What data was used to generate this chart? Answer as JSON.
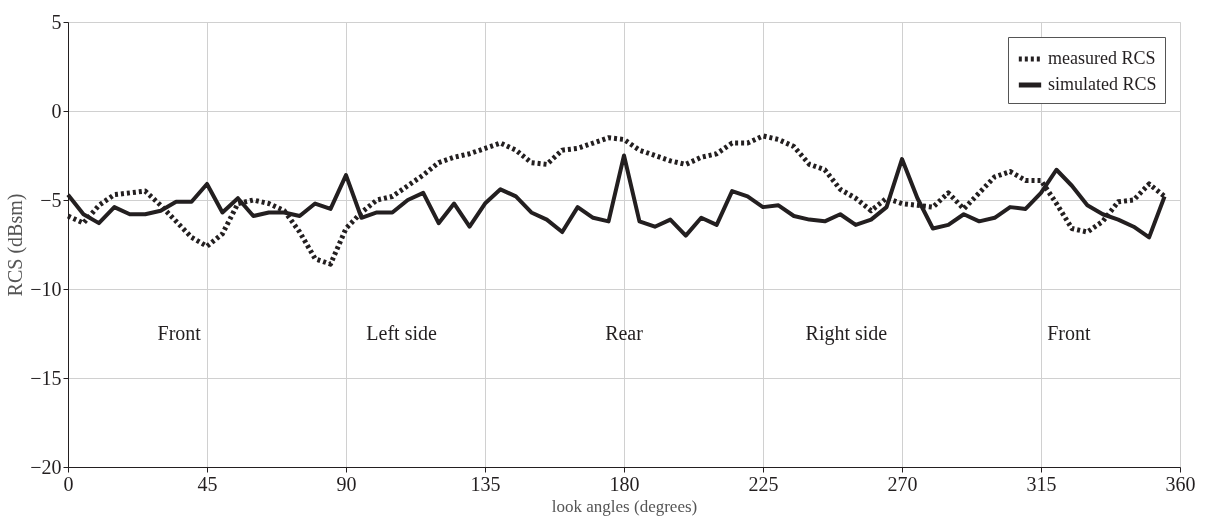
{
  "chart_data": {
    "type": "line",
    "xlabel": "look angles (degrees)",
    "ylabel": "RCS (dBsm)",
    "x": [
      0,
      5,
      10,
      15,
      20,
      25,
      30,
      35,
      40,
      45,
      50,
      55,
      60,
      65,
      70,
      75,
      80,
      85,
      90,
      95,
      100,
      105,
      110,
      115,
      120,
      125,
      130,
      135,
      140,
      145,
      150,
      155,
      160,
      165,
      170,
      175,
      180,
      185,
      190,
      195,
      200,
      205,
      210,
      215,
      220,
      225,
      230,
      235,
      240,
      245,
      250,
      255,
      260,
      265,
      270,
      275,
      280,
      285,
      290,
      295,
      300,
      305,
      310,
      315,
      320,
      325,
      330,
      335,
      340,
      345,
      350,
      355
    ],
    "series": [
      {
        "name": "measured RCS",
        "color": "#231f20",
        "line_style": "dotted",
        "values": [
          -5.9,
          -6.3,
          -5.3,
          -4.7,
          -4.6,
          -4.5,
          -5.3,
          -6.2,
          -7.1,
          -7.6,
          -6.9,
          -5.2,
          -5.0,
          -5.2,
          -5.6,
          -6.8,
          -8.3,
          -8.6,
          -6.6,
          -5.7,
          -5.0,
          -4.8,
          -4.2,
          -3.6,
          -2.9,
          -2.6,
          -2.4,
          -2.1,
          -1.8,
          -2.2,
          -2.9,
          -3.0,
          -2.2,
          -2.1,
          -1.8,
          -1.5,
          -1.6,
          -2.2,
          -2.5,
          -2.8,
          -3.0,
          -2.6,
          -2.4,
          -1.8,
          -1.8,
          -1.4,
          -1.6,
          -2.0,
          -3.0,
          -3.3,
          -4.4,
          -4.9,
          -5.6,
          -4.9,
          -5.2,
          -5.3,
          -5.4,
          -4.6,
          -5.5,
          -4.6,
          -3.7,
          -3.4,
          -3.9,
          -3.9,
          -5.2,
          -6.6,
          -6.8,
          -6.2,
          -5.1,
          -5.0,
          -4.1,
          -4.8
        ]
      },
      {
        "name": "simulated RCS",
        "color": "#231f20",
        "line_style": "solid",
        "values": [
          -4.7,
          -5.8,
          -6.3,
          -5.4,
          -5.8,
          -5.8,
          -5.6,
          -5.1,
          -5.1,
          -4.1,
          -5.7,
          -4.9,
          -5.9,
          -5.7,
          -5.7,
          -5.9,
          -5.2,
          -5.5,
          -3.6,
          -6.0,
          -5.7,
          -5.7,
          -5.0,
          -4.6,
          -6.3,
          -5.2,
          -6.5,
          -5.2,
          -4.4,
          -4.8,
          -5.7,
          -6.1,
          -6.8,
          -5.4,
          -6.0,
          -6.2,
          -2.5,
          -6.2,
          -6.5,
          -6.1,
          -7.0,
          -6.0,
          -6.4,
          -4.5,
          -4.8,
          -5.4,
          -5.3,
          -5.9,
          -6.1,
          -6.2,
          -5.8,
          -6.4,
          -6.1,
          -5.4,
          -2.7,
          -4.9,
          -6.6,
          -6.4,
          -5.8,
          -6.2,
          -6.0,
          -5.4,
          -5.5,
          -4.6,
          -3.3,
          -4.2,
          -5.3,
          -5.8,
          -6.1,
          -6.5,
          -7.1,
          -4.8
        ]
      }
    ],
    "xlim": [
      0,
      360
    ],
    "xticks": [
      0,
      45,
      90,
      135,
      180,
      225,
      270,
      315,
      360
    ],
    "ylim": [
      -20,
      5
    ],
    "yticks": [
      -20,
      -15,
      -10,
      -5,
      0,
      5
    ],
    "grid": true,
    "legend": "top right",
    "marker": "none",
    "annotations": [
      "Front",
      "Left side",
      "Rear",
      "Right side",
      "Front"
    ]
  }
}
